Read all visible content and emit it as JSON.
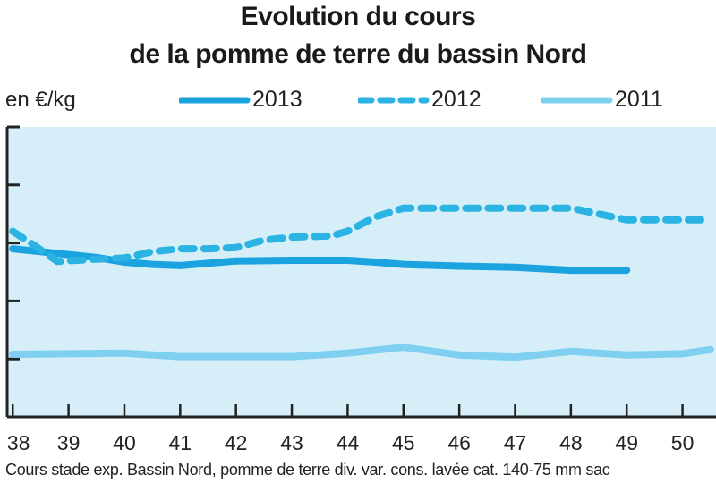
{
  "header": {
    "title_line1": "Evolution du cours",
    "title_line2": "de la pomme de terre du bassin Nord"
  },
  "unit_label": "en €/kg",
  "footnote": "Cours stade exp. Bassin Nord, pomme de terre div. var. cons. lavée cat. 140-75 mm sac",
  "colors": {
    "background": "#d6eef8",
    "axis": "#222222",
    "series_2013": "#1aa3de",
    "series_2012": "#2ab3e3",
    "series_2011": "#7fd0f0"
  },
  "chart_data": {
    "type": "line",
    "title": "Evolution du cours de la pomme de terre du bassin Nord",
    "ylabel": "en €/kg",
    "xlabel": "",
    "x_tick_labels": [
      ". 38",
      "39",
      "40",
      "41",
      "42",
      "43",
      "44",
      "45",
      "46",
      "47",
      "48",
      "49",
      "50"
    ],
    "x": [
      38,
      39,
      40,
      41,
      42,
      43,
      44,
      45,
      46,
      47,
      48,
      49,
      50
    ],
    "xlim": [
      37.9,
      50.6
    ],
    "ylim": [
      0,
      5
    ],
    "y_ticks_labeled": false,
    "grid": false,
    "legend_position": "top",
    "series": [
      {
        "name": "2013",
        "style": "solid",
        "color": "#1aa3de",
        "points": [
          [
            38,
            2.9
          ],
          [
            38.5,
            2.85
          ],
          [
            39,
            2.8
          ],
          [
            39.5,
            2.75
          ],
          [
            40,
            2.67
          ],
          [
            40.5,
            2.63
          ],
          [
            41,
            2.61
          ],
          [
            41.5,
            2.65
          ],
          [
            42,
            2.69
          ],
          [
            43,
            2.7
          ],
          [
            44,
            2.7
          ],
          [
            44.5,
            2.67
          ],
          [
            45,
            2.63
          ],
          [
            46,
            2.6
          ],
          [
            47,
            2.58
          ],
          [
            48,
            2.53
          ],
          [
            49,
            2.53
          ]
        ]
      },
      {
        "name": "2012",
        "style": "dashed",
        "color": "#2ab3e3",
        "points": [
          [
            38,
            3.2
          ],
          [
            38.4,
            2.95
          ],
          [
            38.8,
            2.68
          ],
          [
            39.5,
            2.72
          ],
          [
            40,
            2.74
          ],
          [
            40.5,
            2.85
          ],
          [
            41,
            2.9
          ],
          [
            41.5,
            2.9
          ],
          [
            42,
            2.92
          ],
          [
            42.5,
            3.05
          ],
          [
            43,
            3.1
          ],
          [
            43.7,
            3.12
          ],
          [
            44,
            3.2
          ],
          [
            44.5,
            3.45
          ],
          [
            45,
            3.6
          ],
          [
            45.5,
            3.6
          ],
          [
            47,
            3.6
          ],
          [
            48,
            3.6
          ],
          [
            48.5,
            3.5
          ],
          [
            49,
            3.4
          ],
          [
            50,
            3.4
          ],
          [
            50.5,
            3.4
          ]
        ]
      },
      {
        "name": "2011",
        "style": "solid",
        "color": "#7fd0f0",
        "points": [
          [
            38,
            1.08
          ],
          [
            39,
            1.09
          ],
          [
            40,
            1.1
          ],
          [
            41,
            1.04
          ],
          [
            42,
            1.04
          ],
          [
            43,
            1.04
          ],
          [
            44,
            1.1
          ],
          [
            45,
            1.2
          ],
          [
            46,
            1.07
          ],
          [
            47,
            1.03
          ],
          [
            48,
            1.13
          ],
          [
            49,
            1.07
          ],
          [
            50,
            1.09
          ],
          [
            50.5,
            1.16
          ]
        ]
      }
    ]
  }
}
